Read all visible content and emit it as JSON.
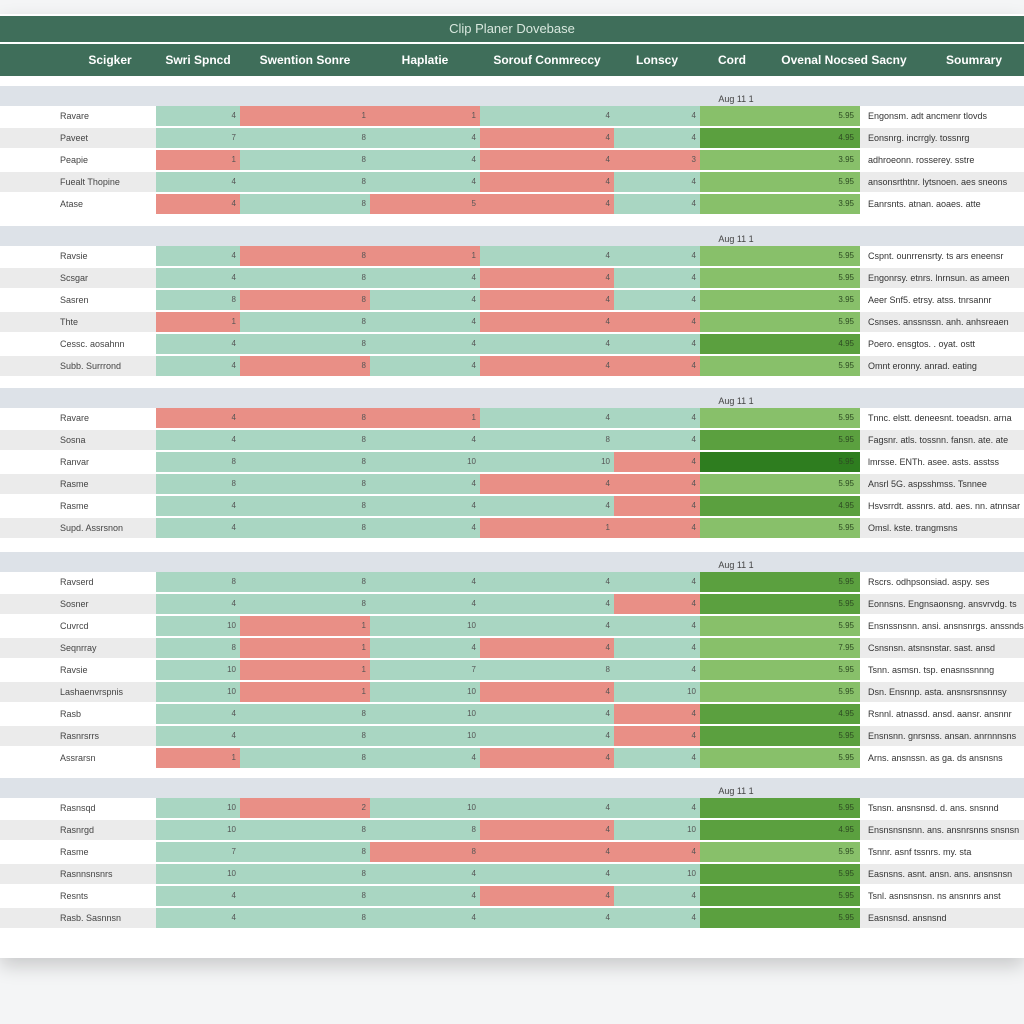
{
  "title": "Clip Planer Dovebase",
  "columns": [
    "Scigker",
    "Swri Spncd",
    "Swention Sonre",
    "Haplatie",
    "Sorouf Conmreccy",
    "Lonscy",
    "Cord",
    "Ovenal Nocsed Sacny",
    "Soumrary"
  ],
  "colors": {
    "header_bg": "#3f6e5a",
    "good": "#a9d6c2",
    "bad": "#e98f86",
    "overall_dark": "#2e7d1f",
    "overall_mid": "#5ba03f",
    "overall_light": "#88c06a"
  },
  "groups": [
    {
      "date": "Aug 11 1",
      "rows": [
        {
          "name": "Ravare",
          "scores": [
            {
              "v": "4",
              "s": "good"
            },
            {
              "v": "1",
              "s": "bad"
            },
            {
              "v": "1",
              "s": "bad"
            },
            {
              "v": "4",
              "s": "good"
            },
            {
              "v": "4",
              "s": "good"
            }
          ],
          "overall": "5.95",
          "tone": "light",
          "summary": "Engonsm. adt ancmenr tlovds"
        },
        {
          "name": "Paveet",
          "scores": [
            {
              "v": "7",
              "s": "good"
            },
            {
              "v": "8",
              "s": "good"
            },
            {
              "v": "4",
              "s": "good"
            },
            {
              "v": "4",
              "s": "bad"
            },
            {
              "v": "4",
              "s": "good"
            }
          ],
          "overall": "4.95",
          "tone": "mid",
          "summary": "Eonsnrg. incrrgly. tossnrg"
        },
        {
          "name": "Peapie",
          "scores": [
            {
              "v": "1",
              "s": "bad"
            },
            {
              "v": "8",
              "s": "good"
            },
            {
              "v": "4",
              "s": "good"
            },
            {
              "v": "4",
              "s": "bad"
            },
            {
              "v": "3",
              "s": "bad"
            }
          ],
          "overall": "3.95",
          "tone": "light",
          "summary": "adhroeonn. rosserey. sstre"
        },
        {
          "name": "Fuealt Thopine",
          "scores": [
            {
              "v": "4",
              "s": "good"
            },
            {
              "v": "8",
              "s": "good"
            },
            {
              "v": "4",
              "s": "good"
            },
            {
              "v": "4",
              "s": "bad"
            },
            {
              "v": "4",
              "s": "good"
            }
          ],
          "overall": "5.95",
          "tone": "light",
          "summary": "ansonsrthtnr. lytsnoen. aes sneons"
        },
        {
          "name": "Atase",
          "scores": [
            {
              "v": "4",
              "s": "bad"
            },
            {
              "v": "8",
              "s": "good"
            },
            {
              "v": "5",
              "s": "bad"
            },
            {
              "v": "4",
              "s": "bad"
            },
            {
              "v": "4",
              "s": "good"
            }
          ],
          "overall": "3.95",
          "tone": "light",
          "summary": "Eanrsnts. atnan. aoaes. atte"
        }
      ]
    },
    {
      "date": "Aug 11 1",
      "rows": [
        {
          "name": "Ravsie",
          "scores": [
            {
              "v": "4",
              "s": "good"
            },
            {
              "v": "8",
              "s": "bad"
            },
            {
              "v": "1",
              "s": "bad"
            },
            {
              "v": "4",
              "s": "good"
            },
            {
              "v": "4",
              "s": "good"
            }
          ],
          "overall": "5.95",
          "tone": "light",
          "summary": "Cspnt. ounrrensrty. ts ars eneensr"
        },
        {
          "name": "Scsgar",
          "scores": [
            {
              "v": "4",
              "s": "good"
            },
            {
              "v": "8",
              "s": "good"
            },
            {
              "v": "4",
              "s": "good"
            },
            {
              "v": "4",
              "s": "bad"
            },
            {
              "v": "4",
              "s": "good"
            }
          ],
          "overall": "5.95",
          "tone": "light",
          "summary": "Engonrsy. etnrs. lnrnsun. as ameen"
        },
        {
          "name": "Sasren",
          "scores": [
            {
              "v": "8",
              "s": "good"
            },
            {
              "v": "8",
              "s": "bad"
            },
            {
              "v": "4",
              "s": "good"
            },
            {
              "v": "4",
              "s": "bad"
            },
            {
              "v": "4",
              "s": "good"
            }
          ],
          "overall": "3.95",
          "tone": "light",
          "summary": "Aeer Snf5. etrsy. atss. tnrsannr"
        },
        {
          "name": "Thte",
          "scores": [
            {
              "v": "1",
              "s": "bad"
            },
            {
              "v": "8",
              "s": "good"
            },
            {
              "v": "4",
              "s": "good"
            },
            {
              "v": "4",
              "s": "bad"
            },
            {
              "v": "4",
              "s": "bad"
            }
          ],
          "overall": "5.95",
          "tone": "light",
          "summary": "Csnses. anssnssn. anh. anhsreaen"
        },
        {
          "name": "Cessc. aosahnn",
          "scores": [
            {
              "v": "4",
              "s": "good"
            },
            {
              "v": "8",
              "s": "good"
            },
            {
              "v": "4",
              "s": "good"
            },
            {
              "v": "4",
              "s": "good"
            },
            {
              "v": "4",
              "s": "good"
            }
          ],
          "overall": "4.95",
          "tone": "mid",
          "summary": "Poero. ensgtos. . oyat. ostt"
        },
        {
          "name": "Subb. Surrrond",
          "scores": [
            {
              "v": "4",
              "s": "good"
            },
            {
              "v": "8",
              "s": "bad"
            },
            {
              "v": "4",
              "s": "good"
            },
            {
              "v": "4",
              "s": "bad"
            },
            {
              "v": "4",
              "s": "bad"
            }
          ],
          "overall": "5.95",
          "tone": "light",
          "summary": "Omnt eronny. anrad. eating"
        }
      ]
    },
    {
      "date": "Aug 11 1",
      "rows": [
        {
          "name": "Ravare",
          "scores": [
            {
              "v": "4",
              "s": "bad"
            },
            {
              "v": "8",
              "s": "bad"
            },
            {
              "v": "1",
              "s": "bad"
            },
            {
              "v": "4",
              "s": "good"
            },
            {
              "v": "4",
              "s": "good"
            }
          ],
          "overall": "5.95",
          "tone": "light",
          "summary": "Tnnc. elstt. deneesnt. toeadsn. arna"
        },
        {
          "name": "Sosna",
          "scores": [
            {
              "v": "4",
              "s": "good"
            },
            {
              "v": "8",
              "s": "good"
            },
            {
              "v": "4",
              "s": "good"
            },
            {
              "v": "8",
              "s": "good"
            },
            {
              "v": "4",
              "s": "good"
            }
          ],
          "overall": "5.95",
          "tone": "mid",
          "summary": "Fagsnr. atls. tossnn. fansn. ate. ate"
        },
        {
          "name": "Ranvar",
          "scores": [
            {
              "v": "8",
              "s": "good"
            },
            {
              "v": "8",
              "s": "good"
            },
            {
              "v": "10",
              "s": "good"
            },
            {
              "v": "10",
              "s": "good"
            },
            {
              "v": "4",
              "s": "bad"
            }
          ],
          "overall": "5.95",
          "tone": "dark",
          "summary": "lmrsse. ENTh. asee. asts. asstss"
        },
        {
          "name": "Rasme",
          "scores": [
            {
              "v": "8",
              "s": "good"
            },
            {
              "v": "8",
              "s": "good"
            },
            {
              "v": "4",
              "s": "good"
            },
            {
              "v": "4",
              "s": "bad"
            },
            {
              "v": "4",
              "s": "bad"
            }
          ],
          "overall": "5.95",
          "tone": "light",
          "summary": "Ansrl 5G. aspsshmss. Tsnnee"
        },
        {
          "name": "Rasme",
          "scores": [
            {
              "v": "4",
              "s": "good"
            },
            {
              "v": "8",
              "s": "good"
            },
            {
              "v": "4",
              "s": "good"
            },
            {
              "v": "4",
              "s": "good"
            },
            {
              "v": "4",
              "s": "bad"
            }
          ],
          "overall": "4.95",
          "tone": "mid",
          "summary": "Hsvsrrdt. assnrs. atd. aes. nn. atnnsar"
        },
        {
          "name": "Supd. Assrsnon",
          "scores": [
            {
              "v": "4",
              "s": "good"
            },
            {
              "v": "8",
              "s": "good"
            },
            {
              "v": "4",
              "s": "good"
            },
            {
              "v": "1",
              "s": "bad"
            },
            {
              "v": "4",
              "s": "bad"
            }
          ],
          "overall": "5.95",
          "tone": "light",
          "summary": "Omsl. kste. trangmsns"
        }
      ]
    },
    {
      "date": "Aug 11 1",
      "rows": [
        {
          "name": "Ravserd",
          "scores": [
            {
              "v": "8",
              "s": "good"
            },
            {
              "v": "8",
              "s": "good"
            },
            {
              "v": "4",
              "s": "good"
            },
            {
              "v": "4",
              "s": "good"
            },
            {
              "v": "4",
              "s": "good"
            }
          ],
          "overall": "5.95",
          "tone": "mid",
          "summary": "Rscrs. odhpsonsiad. aspy. ses"
        },
        {
          "name": "Sosner",
          "scores": [
            {
              "v": "4",
              "s": "good"
            },
            {
              "v": "8",
              "s": "good"
            },
            {
              "v": "4",
              "s": "good"
            },
            {
              "v": "4",
              "s": "good"
            },
            {
              "v": "4",
              "s": "bad"
            }
          ],
          "overall": "5.95",
          "tone": "mid",
          "summary": "Eonnsns. Engnsaonsng. ansvrvdg. ts"
        },
        {
          "name": "Cuvrcd",
          "scores": [
            {
              "v": "10",
              "s": "good"
            },
            {
              "v": "1",
              "s": "bad"
            },
            {
              "v": "10",
              "s": "good"
            },
            {
              "v": "4",
              "s": "good"
            },
            {
              "v": "4",
              "s": "good"
            }
          ],
          "overall": "5.95",
          "tone": "light",
          "summary": "Ensnssnsnn. ansi. ansnsnrgs. anssnds"
        },
        {
          "name": "Seqnrray",
          "scores": [
            {
              "v": "8",
              "s": "good"
            },
            {
              "v": "1",
              "s": "bad"
            },
            {
              "v": "4",
              "s": "good"
            },
            {
              "v": "4",
              "s": "bad"
            },
            {
              "v": "4",
              "s": "good"
            }
          ],
          "overall": "7.95",
          "tone": "light",
          "summary": "Csnsnsn. atsnsnstar. sast. ansd"
        },
        {
          "name": "Ravsie",
          "scores": [
            {
              "v": "10",
              "s": "good"
            },
            {
              "v": "1",
              "s": "bad"
            },
            {
              "v": "7",
              "s": "good"
            },
            {
              "v": "8",
              "s": "good"
            },
            {
              "v": "4",
              "s": "good"
            }
          ],
          "overall": "5.95",
          "tone": "light",
          "summary": "Tsnn. asmsn. tsp. enasnssnnng"
        },
        {
          "name": "Lashaenvrspnis",
          "scores": [
            {
              "v": "10",
              "s": "good"
            },
            {
              "v": "1",
              "s": "bad"
            },
            {
              "v": "10",
              "s": "good"
            },
            {
              "v": "4",
              "s": "bad"
            },
            {
              "v": "10",
              "s": "good"
            }
          ],
          "overall": "5.95",
          "tone": "light",
          "summary": "Dsn. Ensnnp. asta. ansnsrsnsnnsy"
        },
        {
          "name": "Rasb",
          "scores": [
            {
              "v": "4",
              "s": "good"
            },
            {
              "v": "8",
              "s": "good"
            },
            {
              "v": "10",
              "s": "good"
            },
            {
              "v": "4",
              "s": "good"
            },
            {
              "v": "4",
              "s": "bad"
            }
          ],
          "overall": "4.95",
          "tone": "mid",
          "summary": "Rsnnl. atnassd. ansd. aansr. ansnnr"
        },
        {
          "name": "Rasnrsrrs",
          "scores": [
            {
              "v": "4",
              "s": "good"
            },
            {
              "v": "8",
              "s": "good"
            },
            {
              "v": "10",
              "s": "good"
            },
            {
              "v": "4",
              "s": "good"
            },
            {
              "v": "4",
              "s": "bad"
            }
          ],
          "overall": "5.95",
          "tone": "mid",
          "summary": "Ensnsnn. gnrsnss. ansan. anrnnnsns"
        },
        {
          "name": "Assrarsn",
          "scores": [
            {
              "v": "1",
              "s": "bad"
            },
            {
              "v": "8",
              "s": "good"
            },
            {
              "v": "4",
              "s": "good"
            },
            {
              "v": "4",
              "s": "bad"
            },
            {
              "v": "4",
              "s": "good"
            }
          ],
          "overall": "5.95",
          "tone": "light",
          "summary": "Arns. ansnssn. as ga. ds ansnsns"
        }
      ]
    },
    {
      "date": "Aug 11 1",
      "rows": [
        {
          "name": "Rasnsqd",
          "scores": [
            {
              "v": "10",
              "s": "good"
            },
            {
              "v": "2",
              "s": "bad"
            },
            {
              "v": "10",
              "s": "good"
            },
            {
              "v": "4",
              "s": "good"
            },
            {
              "v": "4",
              "s": "good"
            }
          ],
          "overall": "5.95",
          "tone": "mid",
          "summary": "Tsnsn. ansnsnsd. d. ans. snsnnd"
        },
        {
          "name": "Rasnrgd",
          "scores": [
            {
              "v": "10",
              "s": "good"
            },
            {
              "v": "8",
              "s": "good"
            },
            {
              "v": "8",
              "s": "good"
            },
            {
              "v": "4",
              "s": "bad"
            },
            {
              "v": "10",
              "s": "good"
            }
          ],
          "overall": "4.95",
          "tone": "mid",
          "summary": "Ensnsnsnsnn. ans. ansnrsnns snsnsn"
        },
        {
          "name": "Rasme",
          "scores": [
            {
              "v": "7",
              "s": "good"
            },
            {
              "v": "8",
              "s": "good"
            },
            {
              "v": "8",
              "s": "bad"
            },
            {
              "v": "4",
              "s": "bad"
            },
            {
              "v": "4",
              "s": "bad"
            }
          ],
          "overall": "5.95",
          "tone": "light",
          "summary": "Tsnnr. asnf tssnrs. my. sta"
        },
        {
          "name": "Rasnnsnsnrs",
          "scores": [
            {
              "v": "10",
              "s": "good"
            },
            {
              "v": "8",
              "s": "good"
            },
            {
              "v": "4",
              "s": "good"
            },
            {
              "v": "4",
              "s": "good"
            },
            {
              "v": "10",
              "s": "good"
            }
          ],
          "overall": "5.95",
          "tone": "mid",
          "summary": "Easnsns. asnt. ansn. ans. ansnsnsn"
        },
        {
          "name": "Resnts",
          "scores": [
            {
              "v": "4",
              "s": "good"
            },
            {
              "v": "8",
              "s": "good"
            },
            {
              "v": "4",
              "s": "good"
            },
            {
              "v": "4",
              "s": "bad"
            },
            {
              "v": "4",
              "s": "good"
            }
          ],
          "overall": "5.95",
          "tone": "mid",
          "summary": "Tsnl. asnsnsnsn. ns ansnnrs anst"
        },
        {
          "name": "Rasb. Sasnnsn",
          "scores": [
            {
              "v": "4",
              "s": "good"
            },
            {
              "v": "8",
              "s": "good"
            },
            {
              "v": "4",
              "s": "good"
            },
            {
              "v": "4",
              "s": "good"
            },
            {
              "v": "4",
              "s": "good"
            }
          ],
          "overall": "5.95",
          "tone": "mid",
          "summary": "Easnsnsd. ansnsnd"
        }
      ]
    }
  ]
}
